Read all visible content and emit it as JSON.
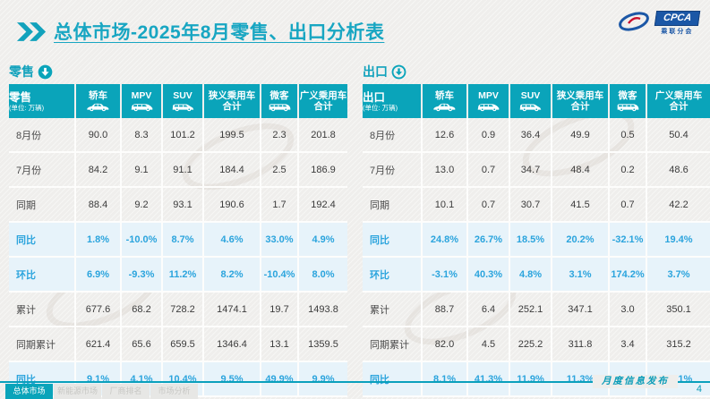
{
  "slide": {
    "title": "总体市场-2025年8月零售、出口分析表",
    "footer_label": "月度信息发布",
    "page_number": "4"
  },
  "logo": {
    "abbr": "CPCA",
    "name": "乘联分会"
  },
  "colors": {
    "accent_teal": "#0aa4ba",
    "title_teal": "#18a6c2",
    "percent_blue": "#2ba4dd",
    "percent_row_bg": "#e7f3fa",
    "logo_blue": "#1b57a6"
  },
  "nav_tabs": [
    {
      "label": "总体市场",
      "active": true
    },
    {
      "label": "新能源市场",
      "active": false
    },
    {
      "label": "厂商排名",
      "active": false
    },
    {
      "label": "市场分析",
      "active": false
    }
  ],
  "sections": [
    {
      "id": "retail",
      "label": "零售",
      "marker_icon": "down-arrow-filled-circle-icon",
      "table": {
        "corner_label": "零售",
        "unit": "(单位: 万辆)",
        "columns": [
          {
            "label": "轿车",
            "icon": "sedan-icon"
          },
          {
            "label": "MPV",
            "icon": "mpv-icon"
          },
          {
            "label": "SUV",
            "icon": "suv-icon"
          },
          {
            "label": "狭义乘用车",
            "label2": "合计"
          },
          {
            "label": "微客",
            "icon": "microvan-icon"
          },
          {
            "label": "广义乘用车",
            "label2": "合计"
          }
        ],
        "rows": [
          {
            "label": "8月份",
            "style": "plain",
            "values": [
              "90.0",
              "8.3",
              "101.2",
              "199.5",
              "2.3",
              "201.8"
            ]
          },
          {
            "label": "7月份",
            "style": "plain",
            "values": [
              "84.2",
              "9.1",
              "91.1",
              "184.4",
              "2.5",
              "186.9"
            ]
          },
          {
            "label": "同期",
            "style": "plain",
            "values": [
              "88.4",
              "9.2",
              "93.1",
              "190.6",
              "1.7",
              "192.4"
            ]
          },
          {
            "label": "同比",
            "style": "percent",
            "values": [
              "1.8%",
              "-10.0%",
              "8.7%",
              "4.6%",
              "33.0%",
              "4.9%"
            ]
          },
          {
            "label": "环比",
            "style": "percent",
            "values": [
              "6.9%",
              "-9.3%",
              "11.2%",
              "8.2%",
              "-10.4%",
              "8.0%"
            ]
          },
          {
            "label": "累计",
            "style": "plain",
            "values": [
              "677.6",
              "68.2",
              "728.2",
              "1474.1",
              "19.7",
              "1493.8"
            ]
          },
          {
            "label": "同期累计",
            "style": "plain",
            "values": [
              "621.4",
              "65.6",
              "659.5",
              "1346.4",
              "13.1",
              "1359.5"
            ]
          },
          {
            "label": "同比",
            "style": "percent",
            "values": [
              "9.1%",
              "4.1%",
              "10.4%",
              "9.5%",
              "49.9%",
              "9.9%"
            ]
          }
        ]
      }
    },
    {
      "id": "export",
      "label": "出口",
      "marker_icon": "down-arrow-outline-circle-icon",
      "table": {
        "corner_label": "出口",
        "unit": "(单位: 万辆)",
        "columns": [
          {
            "label": "轿车",
            "icon": "sedan-icon"
          },
          {
            "label": "MPV",
            "icon": "mpv-icon"
          },
          {
            "label": "SUV",
            "icon": "suv-icon"
          },
          {
            "label": "狭义乘用车",
            "label2": "合计"
          },
          {
            "label": "微客",
            "icon": "microvan-icon"
          },
          {
            "label": "广义乘用车",
            "label2": "合计"
          }
        ],
        "rows": [
          {
            "label": "8月份",
            "style": "plain",
            "values": [
              "12.6",
              "0.9",
              "36.4",
              "49.9",
              "0.5",
              "50.4"
            ]
          },
          {
            "label": "7月份",
            "style": "plain",
            "values": [
              "13.0",
              "0.7",
              "34.7",
              "48.4",
              "0.2",
              "48.6"
            ]
          },
          {
            "label": "同期",
            "style": "plain",
            "values": [
              "10.1",
              "0.7",
              "30.7",
              "41.5",
              "0.7",
              "42.2"
            ]
          },
          {
            "label": "同比",
            "style": "percent",
            "values": [
              "24.8%",
              "26.7%",
              "18.5%",
              "20.2%",
              "-32.1%",
              "19.4%"
            ]
          },
          {
            "label": "环比",
            "style": "percent",
            "values": [
              "-3.1%",
              "40.3%",
              "4.8%",
              "3.1%",
              "174.2%",
              "3.7%"
            ]
          },
          {
            "label": "累计",
            "style": "plain",
            "values": [
              "88.7",
              "6.4",
              "252.1",
              "347.1",
              "3.0",
              "350.1"
            ]
          },
          {
            "label": "同期累计",
            "style": "plain",
            "values": [
              "82.0",
              "4.5",
              "225.2",
              "311.8",
              "3.4",
              "315.2"
            ]
          },
          {
            "label": "同比",
            "style": "percent",
            "values": [
              "8.1%",
              "41.3%",
              "11.9%",
              "11.3%",
              "-12.3%",
              "11.1%"
            ]
          }
        ]
      }
    }
  ]
}
